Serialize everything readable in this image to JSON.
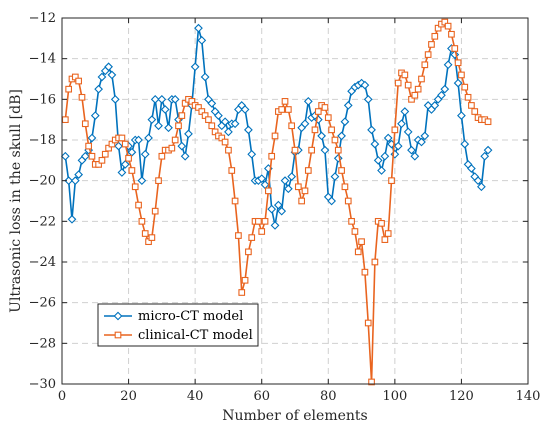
{
  "chart_data": {
    "type": "line",
    "title": "",
    "xlabel": "Number of elements",
    "ylabel": "Ultrasonic loss in the skull [dB]",
    "xlim": [
      0,
      140
    ],
    "ylim": [
      -30,
      -12
    ],
    "xticks": [
      0,
      20,
      40,
      60,
      80,
      100,
      120,
      140
    ],
    "yticks": [
      -30,
      -28,
      -26,
      -24,
      -22,
      -20,
      -18,
      -16,
      -14,
      -12
    ],
    "grid": true,
    "legend_position": "lower-left",
    "series": [
      {
        "name": "micro-CT model",
        "color": "#0072bd",
        "marker": "diamond",
        "x": [
          1,
          2,
          3,
          4,
          5,
          6,
          7,
          8,
          9,
          10,
          11,
          12,
          13,
          14,
          15,
          16,
          17,
          18,
          19,
          20,
          21,
          22,
          23,
          24,
          25,
          26,
          27,
          28,
          29,
          30,
          31,
          32,
          33,
          34,
          35,
          36,
          37,
          38,
          39,
          40,
          41,
          42,
          43,
          44,
          45,
          46,
          47,
          48,
          49,
          50,
          51,
          52,
          53,
          54,
          55,
          56,
          57,
          58,
          59,
          60,
          61,
          62,
          63,
          64,
          65,
          66,
          67,
          68,
          69,
          70,
          71,
          72,
          73,
          74,
          75,
          76,
          77,
          78,
          79,
          80,
          81,
          82,
          83,
          84,
          85,
          86,
          87,
          88,
          89,
          90,
          91,
          92,
          93,
          94,
          95,
          96,
          97,
          98,
          99,
          100,
          101,
          102,
          103,
          104,
          105,
          106,
          107,
          108,
          109,
          110,
          111,
          112,
          113,
          114,
          115,
          116,
          117,
          118,
          119,
          120,
          121,
          122,
          123,
          124,
          125,
          126,
          127,
          128
        ],
        "values": [
          -18.8,
          -20.0,
          -21.9,
          -20.0,
          -19.7,
          -19.0,
          -18.8,
          -18.5,
          -17.9,
          -16.8,
          -15.5,
          -14.9,
          -14.6,
          -14.4,
          -14.8,
          -16.0,
          -18.3,
          -19.6,
          -19.2,
          -18.3,
          -18.6,
          -18.0,
          -18.0,
          -20.0,
          -18.7,
          -17.9,
          -17.0,
          -16.0,
          -17.3,
          -16.0,
          -16.5,
          -17.4,
          -16.0,
          -16.0,
          -17.0,
          -18.3,
          -18.8,
          -17.7,
          -16.3,
          -14.4,
          -12.5,
          -13.1,
          -14.9,
          -16.0,
          -16.2,
          -16.6,
          -16.8,
          -17.3,
          -17.1,
          -17.6,
          -17.2,
          -17.2,
          -16.5,
          -16.3,
          -16.5,
          -17.5,
          -18.7,
          -20.0,
          -20.0,
          -19.9,
          -20.2,
          -19.4,
          -21.4,
          -22.2,
          -21.2,
          -21.5,
          -20.0,
          -20.4,
          -19.8,
          -18.6,
          -18.5,
          -17.4,
          -17.2,
          -16.1,
          -16.9,
          -16.8,
          -17.0,
          -17.8,
          -18.5,
          -20.8,
          -21.0,
          -19.8,
          -18.9,
          -17.8,
          -17.1,
          -16.3,
          -15.6,
          -15.4,
          -15.3,
          -15.2,
          -15.3,
          -16.0,
          -17.5,
          -18.2,
          -19.0,
          -19.5,
          -18.8,
          -17.9,
          -18.2,
          -18.7,
          -18.3,
          -17.2,
          -16.6,
          -17.6,
          -18.5,
          -18.8,
          -18.0,
          -18.1,
          -17.8,
          -16.3,
          -16.5,
          -16.3,
          -16.0,
          -15.8,
          -15.5,
          -14.3,
          -13.5,
          -13.8,
          -15.2,
          -16.8,
          -18.2,
          -19.2,
          -19.4,
          -19.8,
          -20.0,
          -20.3,
          -18.8,
          -18.5
        ]
      },
      {
        "name": "clinical-CT model",
        "color": "#e9641f",
        "marker": "square",
        "x": [
          1,
          2,
          3,
          4,
          5,
          6,
          7,
          8,
          9,
          10,
          11,
          12,
          13,
          14,
          15,
          16,
          17,
          18,
          19,
          20,
          21,
          22,
          23,
          24,
          25,
          26,
          27,
          28,
          29,
          30,
          31,
          32,
          33,
          34,
          35,
          36,
          37,
          38,
          39,
          40,
          41,
          42,
          43,
          44,
          45,
          46,
          47,
          48,
          49,
          50,
          51,
          52,
          53,
          54,
          55,
          56,
          57,
          58,
          59,
          60,
          61,
          62,
          63,
          64,
          65,
          66,
          67,
          68,
          69,
          70,
          71,
          72,
          73,
          74,
          75,
          76,
          77,
          78,
          79,
          80,
          81,
          82,
          83,
          84,
          85,
          86,
          87,
          88,
          89,
          90,
          91,
          92,
          93,
          94,
          95,
          96,
          97,
          98,
          99,
          100,
          101,
          102,
          103,
          104,
          105,
          106,
          107,
          108,
          109,
          110,
          111,
          112,
          113,
          114,
          115,
          116,
          117,
          118,
          119,
          120,
          121,
          122,
          123,
          124,
          125,
          126,
          127,
          128
        ],
        "values": [
          -17.0,
          -15.5,
          -15.0,
          -14.9,
          -15.1,
          -15.9,
          -17.2,
          -18.3,
          -18.8,
          -19.2,
          -19.2,
          -19.0,
          -18.7,
          -18.4,
          -18.2,
          -18.0,
          -17.9,
          -17.9,
          -18.2,
          -18.9,
          -19.5,
          -20.3,
          -21.2,
          -22.0,
          -22.6,
          -23.0,
          -22.8,
          -21.5,
          -20.0,
          -18.8,
          -18.5,
          -18.5,
          -18.4,
          -18.0,
          -17.3,
          -16.8,
          -16.2,
          -16.0,
          -16.1,
          -16.3,
          -16.4,
          -16.6,
          -16.8,
          -17.0,
          -17.3,
          -17.6,
          -17.8,
          -17.9,
          -18.1,
          -18.5,
          -19.5,
          -21.0,
          -22.7,
          -25.5,
          -24.9,
          -23.5,
          -22.8,
          -22.0,
          -22.0,
          -22.5,
          -22.0,
          -20.5,
          -18.8,
          -17.8,
          -16.6,
          -16.5,
          -16.1,
          -16.5,
          -17.3,
          -18.5,
          -20.3,
          -21.0,
          -20.5,
          -19.5,
          -18.5,
          -17.5,
          -16.6,
          -16.3,
          -16.4,
          -16.9,
          -17.5,
          -18.0,
          -18.5,
          -19.5,
          -20.3,
          -21.0,
          -22.0,
          -22.5,
          -23.5,
          -23.0,
          -24.5,
          -27.0,
          -29.9,
          -24.0,
          -22.0,
          -22.1,
          -22.9,
          -22.6,
          -20.0,
          -17.5,
          -15.2,
          -14.7,
          -14.8,
          -15.3,
          -16.0,
          -15.8,
          -15.5,
          -15.0,
          -14.3,
          -13.8,
          -13.3,
          -12.9,
          -12.5,
          -12.3,
          -12.2,
          -12.4,
          -12.8,
          -13.5,
          -14.2,
          -14.8,
          -15.4,
          -15.9,
          -16.3,
          -16.6,
          -16.9,
          -17.0,
          -17.0,
          -17.1
        ]
      }
    ]
  }
}
